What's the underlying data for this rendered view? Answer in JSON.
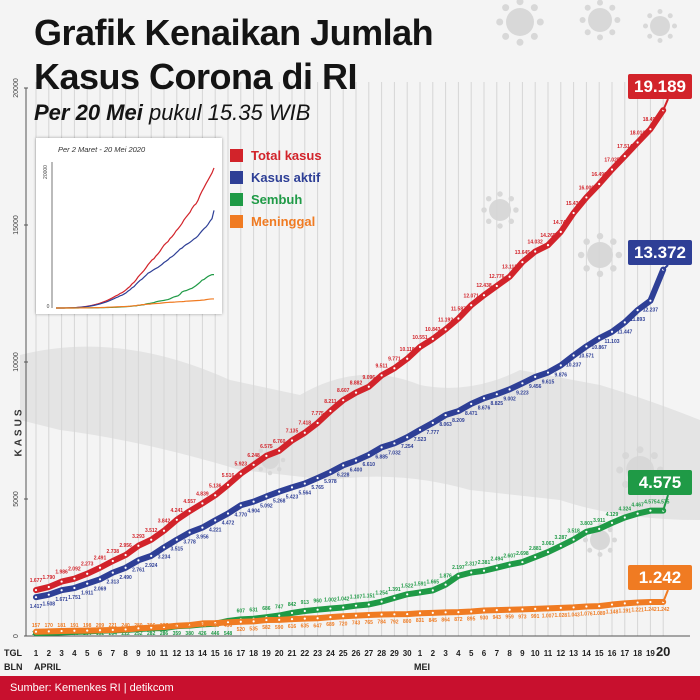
{
  "header": {
    "title_line1": "Grafik Kenaikan Jumlah",
    "title_line2": "Kasus Corona di RI",
    "subtitle_bold": "Per 20 Mei",
    "subtitle_rest": " pukul 15.35 WIB"
  },
  "inset": {
    "caption": "Per 2 Maret - 20 Mei 2020",
    "y_top_label": "20000",
    "y_bottom_label": "0"
  },
  "footer": {
    "source": "Sumber: Kemenkes RI | detikcom"
  },
  "colors": {
    "total": "#d2232a",
    "aktif": "#2e3f96",
    "sembuh": "#1f9a46",
    "meninggal": "#f07b22",
    "source_bar": "#c8102e"
  },
  "chart_data": {
    "type": "line",
    "ylabel": "KASUS",
    "ylim": [
      0,
      20000
    ],
    "y_ticks": [
      0,
      5000,
      10000,
      15000,
      20000
    ],
    "x_axis": {
      "tgl_label": "TGL",
      "bln_label": "BLN",
      "month_april": "APRIL",
      "month_mei": "MEI",
      "days": [
        "1",
        "2",
        "3",
        "4",
        "5",
        "6",
        "7",
        "8",
        "9",
        "10",
        "11",
        "12",
        "13",
        "14",
        "15",
        "16",
        "17",
        "18",
        "19",
        "20",
        "21",
        "22",
        "23",
        "24",
        "25",
        "26",
        "27",
        "28",
        "29",
        "30",
        "1",
        "2",
        "3",
        "4",
        "5",
        "6",
        "7",
        "8",
        "9",
        "10",
        "11",
        "12",
        "13",
        "14",
        "15",
        "16",
        "17",
        "18",
        "19",
        "20"
      ]
    },
    "legend": [
      "Total kasus",
      "Kasus aktif",
      "Sembuh",
      "Meninggal"
    ],
    "callouts": {
      "total": "19.189",
      "aktif": "13.372",
      "sembuh": "4.575",
      "meninggal": "1.242"
    },
    "series": [
      {
        "name": "Total kasus",
        "values": [
          1677,
          1790,
          1986,
          2092,
          2273,
          2491,
          2738,
          2956,
          3293,
          3512,
          3842,
          4241,
          4557,
          4839,
          5136,
          5516,
          5923,
          6248,
          6575,
          6760,
          7135,
          7418,
          7775,
          8211,
          8607,
          8882,
          9096,
          9511,
          9771,
          10118,
          10551,
          10843,
          11192,
          11587,
          12071,
          12438,
          12776,
          13112,
          13645,
          14032,
          14265,
          14749,
          15438,
          16006,
          16496,
          17025,
          17514,
          18010,
          18496,
          19189
        ],
        "labels": [
          "1.677",
          "1.790",
          "1.986",
          "2.092",
          "2.273",
          "2.491",
          "2.738",
          "2.956",
          "3.293",
          "3.512",
          "3.842",
          "4.241",
          "4.557",
          "4.839",
          "5.136",
          "5.516",
          "5.923",
          "6.248",
          "6.575",
          "6.760",
          "7.135",
          "7.418",
          "7.775",
          "8.211",
          "8.607",
          "8.882",
          "9.096",
          "9.511",
          "9.771",
          "10.118",
          "10.551",
          "10.843",
          "11.192",
          "11.587",
          "12.071",
          "12.438",
          "12.776",
          "13.112",
          "13.645",
          "14.032",
          "14.265",
          "14.749",
          "15.438",
          "16.006",
          "16.496",
          "17.025",
          "17.514",
          "18.010",
          "18.496",
          "19.189"
        ]
      },
      {
        "name": "Kasus aktif",
        "values": [
          1417,
          1508,
          1671,
          1751,
          1911,
          2069,
          2313,
          2490,
          2761,
          2924,
          3234,
          3515,
          3778,
          3956,
          4221,
          4472,
          4770,
          4904,
          5092,
          5268,
          5423,
          5564,
          5765,
          5978,
          6228,
          6400,
          6610,
          6885,
          7032,
          7254,
          7523,
          7777,
          8063,
          8209,
          8471,
          8676,
          8825,
          9002,
          9223,
          9456,
          9615,
          9876,
          10237,
          10571,
          10867,
          11103,
          11447,
          11893,
          12237,
          13372
        ],
        "labels": [
          "1.417",
          "1.508",
          "1.671",
          "1.751",
          "1.911",
          "2.069",
          "2.313",
          "2.490",
          "2.761",
          "2.924",
          "3.234",
          "3.515",
          "3.778",
          "3.956",
          "4.221",
          "4.472",
          "4.770",
          "4.904",
          "5.092",
          "5.268",
          "5.423",
          "5.564",
          "5.765",
          "5.978",
          "6.228",
          "6.400",
          "6.610",
          "6.885",
          "7.032",
          "7.254",
          "7.523",
          "7.777",
          "8.063",
          "8.209",
          "8.471",
          "8.676",
          "8.825",
          "9.002",
          "9.223",
          "9.456",
          "9.615",
          "9.876",
          "10.237",
          "10.571",
          "10.867",
          "11.103",
          "11.447",
          "11.893",
          "12.237",
          "13.372"
        ]
      },
      {
        "name": "Sembuh",
        "values": [
          103,
          112,
          134,
          150,
          164,
          192,
          204,
          222,
          252,
          282,
          286,
          359,
          380,
          426,
          446,
          548,
          607,
          631,
          686,
          747,
          842,
          913,
          960,
          1002,
          1042,
          1107,
          1151,
          1254,
          1391,
          1522,
          1591,
          1665,
          1876,
          2197,
          2317,
          2381,
          2494,
          2607,
          2698,
          2881,
          3063,
          3287,
          3518,
          3803,
          3911,
          4129,
          4324,
          4467,
          4575,
          4575
        ],
        "labels": [
          "103",
          "112",
          "134",
          "150",
          "164",
          "192",
          "204",
          "222",
          "252",
          "282",
          "286",
          "359",
          "380",
          "426",
          "446",
          "548",
          "607",
          "631",
          "686",
          "747",
          "842",
          "913",
          "960",
          "1.002",
          "1.042",
          "1.107",
          "1.151",
          "1.254",
          "1.391",
          "1.522",
          "1.591",
          "1.665",
          "1.876",
          "2.197",
          "2.317",
          "2.381",
          "2.494",
          "2.607",
          "2.698",
          "2.881",
          "3.063",
          "3.287",
          "3.518",
          "3.803",
          "3.911",
          "4.129",
          "4.324",
          "4.467",
          "4.575",
          "4.575"
        ]
      },
      {
        "name": "Meninggal",
        "values": [
          157,
          170,
          181,
          191,
          198,
          209,
          221,
          240,
          280,
          306,
          327,
          373,
          399,
          459,
          469,
          496,
          520,
          535,
          582,
          590,
          616,
          635,
          647,
          689,
          720,
          743,
          765,
          784,
          792,
          800,
          831,
          845,
          864,
          872,
          895,
          930,
          943,
          959,
          973,
          991,
          1007,
          1028,
          1043,
          1076,
          1089,
          1148,
          1191,
          1221,
          1242,
          1242
        ],
        "labels": [
          "157",
          "170",
          "181",
          "191",
          "198",
          "209",
          "221",
          "240",
          "280",
          "306",
          "327",
          "373",
          "399",
          "459",
          "469",
          "496",
          "520",
          "535",
          "582",
          "590",
          "616",
          "635",
          "647",
          "689",
          "720",
          "743",
          "765",
          "784",
          "792",
          "800",
          "831",
          "845",
          "864",
          "872",
          "895",
          "930",
          "943",
          "959",
          "973",
          "991",
          "1.007",
          "1.028",
          "1.043",
          "1.076",
          "1.089",
          "1.148",
          "1.191",
          "1.221",
          "1.242",
          "1.242"
        ]
      }
    ]
  }
}
